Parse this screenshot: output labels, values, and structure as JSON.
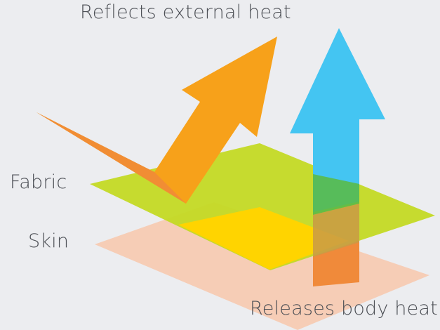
{
  "labels": {
    "reflects": "Reflects external heat",
    "releases": "Releases body heat",
    "fabric": "Fabric",
    "skin": "Skin"
  },
  "colors": {
    "background": "#ecedf0",
    "fabric_layer": "#c4da26",
    "skin_layer": "#f6cdb6",
    "overlap": "#ffd400",
    "reflect_arrow": "#f7a11a",
    "release_arrow": "#44c5f2",
    "release_arrow_under": "#f08a3a",
    "text": "#4c4f55"
  }
}
